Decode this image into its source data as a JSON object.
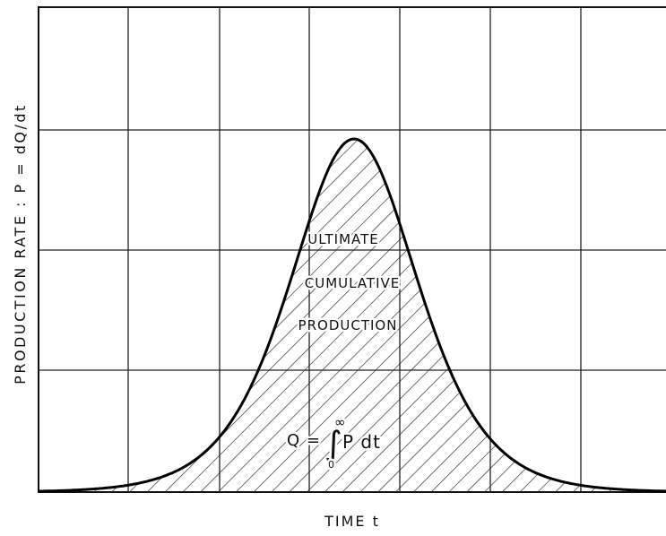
{
  "axes": {
    "y_label": "PRODUCTION RATE : P = dQ/dt",
    "x_label": "TIME t"
  },
  "area_label": [
    "ULTIMATE",
    "CUMULATIVE",
    "PRODUCTION"
  ],
  "integral": {
    "lhs": "Q =",
    "symbol": "∫",
    "lower": "0",
    "upper": "∞",
    "integrand": "P dt"
  }
}
